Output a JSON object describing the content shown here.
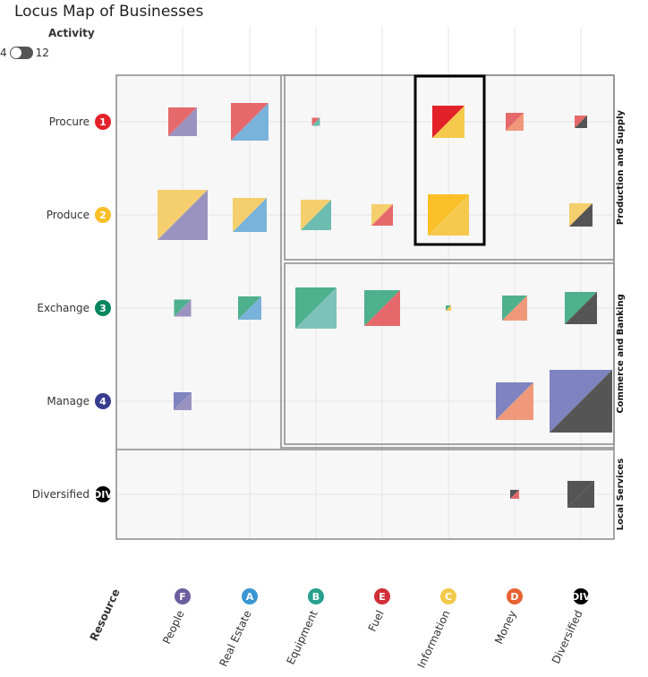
{
  "title": "Locus Map of Businesses",
  "activity": {
    "label": "Activity",
    "min_label": "4",
    "max_label": "12"
  },
  "chart_data": {
    "type": "heatmap",
    "title": "Locus Map of Businesses",
    "rows": [
      {
        "label": "Procure",
        "badge": "1",
        "color": "#e22129"
      },
      {
        "label": "Produce",
        "badge": "2",
        "color": "#fbbf27"
      },
      {
        "label": "Exchange",
        "badge": "3",
        "color": "#04865f"
      },
      {
        "label": "Manage",
        "badge": "4",
        "color": "#383d8f"
      },
      {
        "label": "Diversified",
        "badge": "DIV",
        "color": "#000000"
      }
    ],
    "columns": [
      {
        "label": "People",
        "badge": "F",
        "color": "#6b5fa0"
      },
      {
        "label": "Real Estate",
        "badge": "A",
        "color": "#3a96d2"
      },
      {
        "label": "Equipment",
        "badge": "B",
        "color": "#27a08d"
      },
      {
        "label": "Fuel",
        "badge": "E",
        "color": "#d12e38"
      },
      {
        "label": "Information",
        "badge": "C",
        "color": "#f2c94a"
      },
      {
        "label": "Money",
        "badge": "D",
        "color": "#e86132"
      },
      {
        "label": "Diversified",
        "badge": "DIV",
        "color": "#000000"
      }
    ],
    "resource_axis_label": "Resource",
    "groups": [
      "Production and Supply",
      "Commerce and Banking",
      "Local Services"
    ],
    "cells": [
      {
        "row": 0,
        "col": 0,
        "size": 32,
        "top": "#e5696a",
        "bottom": "#9b93bf"
      },
      {
        "row": 0,
        "col": 1,
        "size": 42,
        "top": "#e5696a",
        "bottom": "#79b2da"
      },
      {
        "row": 0,
        "col": 2,
        "size": 9,
        "top": "#e5696a",
        "bottom": "#6bbcb1"
      },
      {
        "row": 0,
        "col": 4,
        "size": 36,
        "top": "#e22129",
        "bottom": "#f5c94c"
      },
      {
        "row": 0,
        "col": 5,
        "size": 20,
        "top": "#e5696a",
        "bottom": "#f0997a"
      },
      {
        "row": 0,
        "col": 6,
        "size": 14,
        "top": "#e5696a",
        "bottom": "#555555"
      },
      {
        "row": 1,
        "col": 0,
        "size": 56,
        "top": "#f5cf6d",
        "bottom": "#9b93bf"
      },
      {
        "row": 1,
        "col": 1,
        "size": 38,
        "top": "#f5cf6d",
        "bottom": "#79b2da"
      },
      {
        "row": 1,
        "col": 2,
        "size": 34,
        "top": "#f5cf6d",
        "bottom": "#6bbcb1"
      },
      {
        "row": 1,
        "col": 3,
        "size": 24,
        "top": "#f5cf6d",
        "bottom": "#e5696a"
      },
      {
        "row": 1,
        "col": 4,
        "size": 46,
        "top": "#fbbf27",
        "bottom": "#f5c94c"
      },
      {
        "row": 1,
        "col": 6,
        "size": 26,
        "top": "#f5cf6d",
        "bottom": "#555555"
      },
      {
        "row": 2,
        "col": 0,
        "size": 19,
        "top": "#4fb08d",
        "bottom": "#9b93bf"
      },
      {
        "row": 2,
        "col": 1,
        "size": 26,
        "top": "#4fb08d",
        "bottom": "#79b2da"
      },
      {
        "row": 2,
        "col": 2,
        "size": 46,
        "top": "#4fb08d",
        "bottom": "#7dc1b9"
      },
      {
        "row": 2,
        "col": 3,
        "size": 40,
        "top": "#4fb08d",
        "bottom": "#e5696a"
      },
      {
        "row": 2,
        "col": 4,
        "size": 6,
        "top": "#4fb08d",
        "bottom": "#f5c94c"
      },
      {
        "row": 2,
        "col": 5,
        "size": 28,
        "top": "#4fb08d",
        "bottom": "#f0997a"
      },
      {
        "row": 2,
        "col": 6,
        "size": 36,
        "top": "#4fb08d",
        "bottom": "#555555"
      },
      {
        "row": 3,
        "col": 0,
        "size": 20,
        "top": "#7f83bf",
        "bottom": "#9b93bf"
      },
      {
        "row": 3,
        "col": 5,
        "size": 42,
        "top": "#7f83bf",
        "bottom": "#f0997a"
      },
      {
        "row": 3,
        "col": 6,
        "size": 70,
        "top": "#7f83bf",
        "bottom": "#555555"
      },
      {
        "row": 4,
        "col": 5,
        "size": 10,
        "top": "#555555",
        "bottom": "#e5696a"
      },
      {
        "row": 4,
        "col": 6,
        "size": 30,
        "top": "#555555",
        "bottom": "#555555"
      }
    ],
    "highlight": {
      "col": 4,
      "rows": [
        0,
        1
      ]
    }
  }
}
